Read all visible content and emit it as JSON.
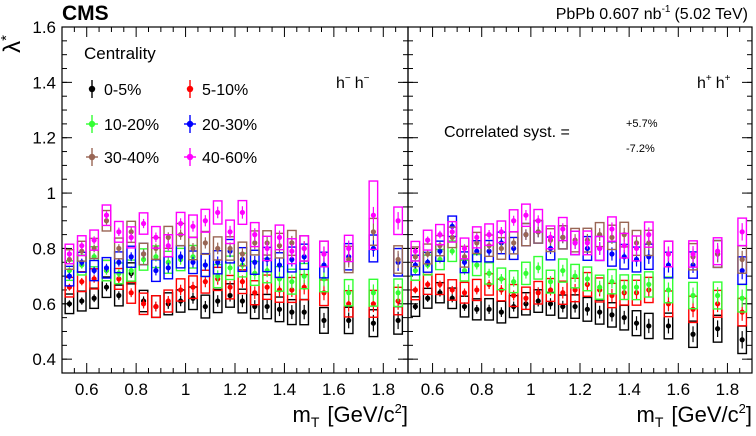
{
  "header": {
    "experiment": "CMS",
    "lumi_prefix": "PbPb 0.607 nb",
    "lumi_exponent": "-1",
    "lumi_energy": "(5.02 TeV)"
  },
  "legend": {
    "title": "Centrality",
    "entries": [
      {
        "label": "0-5%",
        "color": "#000000"
      },
      {
        "label": "5-10%",
        "color": "#ff0000"
      },
      {
        "label": "10-20%",
        "color": "#33ff33"
      },
      {
        "label": "20-30%",
        "color": "#0000ff"
      },
      {
        "label": "30-40%",
        "color": "#996655"
      },
      {
        "label": "40-60%",
        "color": "#ff00ff"
      }
    ]
  },
  "syst": {
    "text": "Correlated syst. =",
    "up": "+5.7%",
    "down": "-7.2%"
  },
  "chart_data": [
    {
      "type": "scatter",
      "panel": "left",
      "panel_label_main": "h",
      "panel_label_sup": "−",
      "ylabel": "λ",
      "ylabel_sup": "*",
      "xlabel": "m",
      "xlabel_sub": "T",
      "xlabel_unit_main": "[GeV/c",
      "xlabel_unit_sup": "2",
      "xlabel_unit_close": "]",
      "xlim": [
        0.5,
        1.9
      ],
      "ylim": [
        0.35,
        1.6
      ],
      "x_ticks": [
        0.6,
        0.8,
        1,
        1.2,
        1.4,
        1.6,
        1.8
      ],
      "x_tick_labels": [
        "0.6",
        "0.8",
        "1",
        "1.2",
        "1.4",
        "1.6",
        "1.8"
      ],
      "y_ticks": [
        0.4,
        0.6,
        0.8,
        1,
        1.2,
        1.4,
        1.6
      ],
      "y_tick_labels": [
        "0.4",
        "0.6",
        "0.8",
        "1",
        "1.2",
        "1.4",
        "1.6"
      ],
      "x": [
        0.53,
        0.58,
        0.63,
        0.68,
        0.73,
        0.78,
        0.83,
        0.88,
        0.93,
        0.98,
        1.03,
        1.08,
        1.13,
        1.18,
        1.23,
        1.28,
        1.33,
        1.38,
        1.43,
        1.48,
        1.56,
        1.66,
        1.76,
        1.86
      ],
      "series": [
        {
          "name": "0-5%",
          "values": [
            0.6,
            0.61,
            0.62,
            0.66,
            0.63,
            0.71,
            0.61,
            0.59,
            0.6,
            0.61,
            0.62,
            0.59,
            0.61,
            0.63,
            0.61,
            0.59,
            0.59,
            0.58,
            0.57,
            0.57,
            0.54,
            0.54,
            0.53,
            0.54
          ]
        },
        {
          "name": "5-10%",
          "values": [
            0.66,
            0.68,
            0.69,
            0.72,
            0.69,
            0.64,
            0.6,
            0.59,
            0.61,
            0.65,
            0.66,
            0.68,
            0.69,
            0.66,
            0.68,
            0.64,
            0.66,
            0.65,
            0.65,
            0.66,
            0.64,
            0.6,
            0.6,
            0.61
          ]
        },
        {
          "name": "10-20%",
          "values": [
            0.72,
            0.74,
            0.77,
            0.72,
            0.71,
            0.72,
            0.76,
            0.77,
            0.75,
            0.76,
            0.77,
            0.74,
            0.7,
            0.73,
            0.74,
            0.71,
            0.72,
            0.69,
            0.68,
            0.7,
            0.69,
            0.64,
            0.64,
            0.64
          ]
        },
        {
          "name": "20-30%",
          "values": [
            0.7,
            0.75,
            0.72,
            0.73,
            0.75,
            0.77,
            0.78,
            0.72,
            0.73,
            0.77,
            0.75,
            0.74,
            0.75,
            0.79,
            0.76,
            0.75,
            0.76,
            0.74,
            0.76,
            0.77,
            0.74,
            0.77,
            0.8,
            0.75
          ]
        },
        {
          "name": "30-40%",
          "values": [
            0.76,
            0.79,
            0.8,
            0.9,
            0.8,
            0.86,
            0.78,
            0.8,
            0.84,
            0.85,
            0.8,
            0.82,
            0.8,
            0.8,
            0.78,
            0.82,
            0.82,
            0.81,
            0.82,
            0.8,
            0.78,
            0.76,
            0.86,
            0.76
          ]
        },
        {
          "name": "40-60%",
          "values": [
            0.78,
            0.81,
            0.83,
            0.92,
            0.86,
            0.84,
            0.89,
            0.84,
            0.81,
            0.89,
            0.88,
            0.9,
            0.93,
            0.86,
            0.93,
            0.85,
            0.8,
            0.84,
            0.79,
            0.8,
            0.78,
            0.8,
            0.92,
            0.9
          ]
        }
      ]
    },
    {
      "type": "scatter",
      "panel": "right",
      "panel_label_main": "h",
      "panel_label_sup": "+",
      "ylabel": "λ",
      "ylabel_sup": "*",
      "xlabel": "m",
      "xlabel_sub": "T",
      "xlabel_unit_main": "[GeV/c",
      "xlabel_unit_sup": "2",
      "xlabel_unit_close": "]",
      "xlim": [
        0.5,
        1.9
      ],
      "ylim": [
        0.35,
        1.6
      ],
      "x_ticks": [
        0.6,
        0.8,
        1,
        1.2,
        1.4,
        1.6,
        1.8
      ],
      "x_tick_labels": [
        "0.6",
        "0.8",
        "1",
        "1.2",
        "1.4",
        "1.6",
        "1.8"
      ],
      "y_ticks": [
        0.4,
        0.6,
        0.8,
        1,
        1.2,
        1.4,
        1.6
      ],
      "y_tick_labels": [
        "0.4",
        "0.6",
        "0.8",
        "1",
        "1.2",
        "1.4",
        "1.6"
      ],
      "x": [
        0.53,
        0.58,
        0.63,
        0.68,
        0.73,
        0.78,
        0.83,
        0.88,
        0.93,
        0.98,
        1.03,
        1.08,
        1.13,
        1.18,
        1.23,
        1.28,
        1.33,
        1.38,
        1.43,
        1.48,
        1.56,
        1.66,
        1.76,
        1.86
      ],
      "series": [
        {
          "name": "0-5%",
          "values": [
            0.59,
            0.62,
            0.64,
            0.62,
            0.59,
            0.58,
            0.58,
            0.57,
            0.59,
            0.6,
            0.61,
            0.6,
            0.59,
            0.59,
            0.58,
            0.57,
            0.56,
            0.55,
            0.53,
            0.52,
            0.52,
            0.49,
            0.51,
            0.47
          ]
        },
        {
          "name": "5-10%",
          "values": [
            0.65,
            0.67,
            0.67,
            0.65,
            0.64,
            0.65,
            0.67,
            0.65,
            0.63,
            0.62,
            0.64,
            0.65,
            0.64,
            0.65,
            0.67,
            0.65,
            0.63,
            0.64,
            0.64,
            0.65,
            0.6,
            0.58,
            0.6,
            0.57
          ]
        },
        {
          "name": "10-20%",
          "values": [
            0.72,
            0.74,
            0.76,
            0.79,
            0.72,
            0.74,
            0.71,
            0.69,
            0.68,
            0.71,
            0.73,
            0.68,
            0.72,
            0.7,
            0.69,
            0.66,
            0.68,
            0.66,
            0.66,
            0.67,
            0.65,
            0.63,
            0.63,
            0.62
          ]
        },
        {
          "name": "20-30%",
          "values": [
            0.74,
            0.75,
            0.79,
            0.88,
            0.75,
            0.79,
            0.79,
            0.82,
            0.8,
            0.85,
            0.86,
            0.8,
            0.84,
            0.82,
            0.8,
            0.8,
            0.78,
            0.77,
            0.76,
            0.77,
            0.74,
            0.74,
            0.78,
            0.72
          ]
        },
        {
          "name": "30-40%",
          "values": [
            0.77,
            0.78,
            0.81,
            0.84,
            0.77,
            0.82,
            0.81,
            0.8,
            0.82,
            0.85,
            0.86,
            0.83,
            0.84,
            0.83,
            0.83,
            0.85,
            0.84,
            0.85,
            0.82,
            0.82,
            0.78,
            0.77,
            0.78,
            0.76
          ]
        },
        {
          "name": "40-60%",
          "values": [
            0.79,
            0.83,
            0.85,
            0.86,
            0.8,
            0.84,
            0.85,
            0.86,
            0.9,
            0.92,
            0.9,
            0.84,
            0.87,
            0.82,
            0.82,
            0.8,
            0.87,
            0.81,
            0.8,
            0.85,
            0.78,
            0.78,
            0.79,
            0.86
          ]
        }
      ]
    }
  ]
}
